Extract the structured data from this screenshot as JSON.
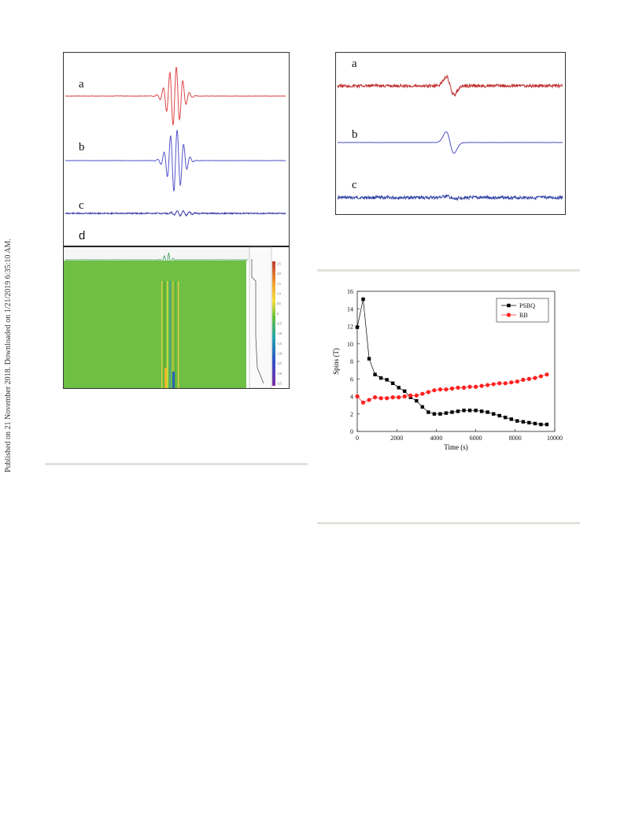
{
  "sidebar_note": "Published on 21 November 2018. Downloaded on 1/21/2019 6:35:10 AM.",
  "figure_left": {
    "labels": [
      "a",
      "b",
      "c",
      "d"
    ],
    "colorbar_ticks": [
      "2.5",
      "2.0",
      "1.5",
      "1.0",
      "0.5",
      "0",
      "-0.5",
      "-1.0",
      "-1.5",
      "-2.0",
      "-2.5",
      "-3.0",
      "-3.5"
    ]
  },
  "figure_right_top": {
    "labels": [
      "a",
      "b",
      "c"
    ]
  },
  "chart_data": {
    "type": "scatter",
    "xlabel": "Time (s)",
    "ylabel": "Spins (T)",
    "xlim": [
      0,
      10000
    ],
    "ylim": [
      0,
      16
    ],
    "xticks": [
      0,
      2000,
      4000,
      6000,
      8000,
      10000
    ],
    "yticks": [
      0,
      2,
      4,
      6,
      8,
      10,
      12,
      14,
      16
    ],
    "legend_position": "top-right",
    "series": [
      {
        "name": "PSBQ",
        "color": "#000000",
        "marker": "square",
        "x": [
          0,
          300,
          600,
          900,
          1200,
          1500,
          1800,
          2100,
          2400,
          2700,
          3000,
          3300,
          3600,
          3900,
          4200,
          4500,
          4800,
          5100,
          5400,
          5700,
          6000,
          6300,
          6600,
          6900,
          7200,
          7500,
          7800,
          8100,
          8400,
          8700,
          9000,
          9300,
          9600
        ],
        "y": [
          11.9,
          15.1,
          8.3,
          6.5,
          6.1,
          5.9,
          5.5,
          5.0,
          4.6,
          3.9,
          3.5,
          2.8,
          2.2,
          2.0,
          2.0,
          2.1,
          2.2,
          2.3,
          2.4,
          2.4,
          2.4,
          2.3,
          2.2,
          2.0,
          1.8,
          1.6,
          1.4,
          1.2,
          1.1,
          1.0,
          0.9,
          0.8,
          0.8
        ]
      },
      {
        "name": "RB",
        "color": "#ff2020",
        "marker": "circle",
        "x": [
          0,
          300,
          600,
          900,
          1200,
          1500,
          1800,
          2100,
          2400,
          2700,
          3000,
          3300,
          3600,
          3900,
          4200,
          4500,
          4800,
          5100,
          5400,
          5700,
          6000,
          6300,
          6600,
          6900,
          7200,
          7500,
          7800,
          8100,
          8400,
          8700,
          9000,
          9300,
          9600
        ],
        "y": [
          4.0,
          3.3,
          3.6,
          3.9,
          3.8,
          3.8,
          3.9,
          3.9,
          4.0,
          4.1,
          4.1,
          4.3,
          4.5,
          4.7,
          4.8,
          4.8,
          4.9,
          5.0,
          5.0,
          5.1,
          5.1,
          5.2,
          5.3,
          5.4,
          5.5,
          5.5,
          5.6,
          5.7,
          5.9,
          6.0,
          6.1,
          6.3,
          6.5
        ]
      }
    ]
  }
}
